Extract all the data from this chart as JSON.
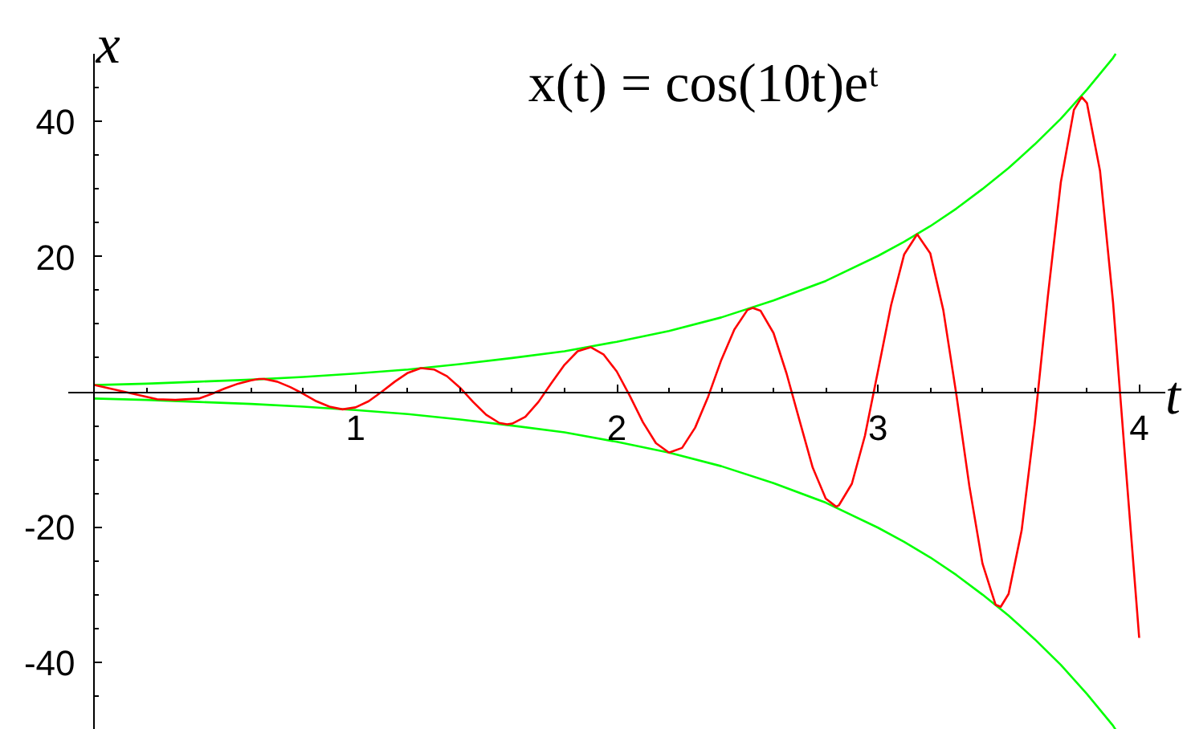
{
  "chart_data": {
    "type": "line",
    "title": "x(t) = cos(10t)eᵗ",
    "xlabel": "t",
    "ylabel": "x",
    "xlim": [
      -0.1,
      4.1
    ],
    "ylim": [
      -50,
      50
    ],
    "xticks": [
      {
        "value": 0.2,
        "label": null
      },
      {
        "value": 0.4,
        "label": null
      },
      {
        "value": 0.6,
        "label": null
      },
      {
        "value": 0.8,
        "label": null
      },
      1,
      {
        "value": 1.2,
        "label": null
      },
      {
        "value": 1.4,
        "label": null
      },
      {
        "value": 1.6,
        "label": null
      },
      {
        "value": 1.8,
        "label": null
      },
      2,
      {
        "value": 2.2,
        "label": null
      },
      {
        "value": 2.4,
        "label": null
      },
      {
        "value": 2.6,
        "label": null
      },
      {
        "value": 2.8,
        "label": null
      },
      3,
      {
        "value": 3.2,
        "label": null
      },
      {
        "value": 3.4,
        "label": null
      },
      {
        "value": 3.6,
        "label": null
      },
      {
        "value": 3.8,
        "label": null
      },
      4
    ],
    "yticks": [
      {
        "value": -45,
        "label": null
      },
      -40,
      {
        "value": -35,
        "label": null
      },
      {
        "value": -30,
        "label": null
      },
      {
        "value": -25,
        "label": null
      },
      -20,
      {
        "value": -15,
        "label": null
      },
      {
        "value": -10,
        "label": null
      },
      {
        "value": -5,
        "label": null
      },
      {
        "value": 5,
        "label": null
      },
      {
        "value": 10,
        "label": null
      },
      {
        "value": 15,
        "label": null
      },
      20,
      {
        "value": 25,
        "label": null
      },
      {
        "value": 30,
        "label": null
      },
      {
        "value": 35,
        "label": null
      },
      40,
      {
        "value": 45,
        "label": null
      }
    ],
    "series": [
      {
        "color": "#00ff00",
        "x": [
          0,
          0.2,
          0.4,
          0.6,
          0.8,
          1.0,
          1.2,
          1.4,
          1.6,
          1.8,
          2.0,
          2.2,
          2.4,
          2.6,
          2.8,
          3.0,
          3.1,
          3.2,
          3.3,
          3.4,
          3.5,
          3.6,
          3.7,
          3.8,
          3.9,
          3.91
        ],
        "values": [
          1.0,
          1.2,
          1.5,
          1.8,
          2.2,
          2.7,
          3.3,
          4.1,
          5.0,
          6.0,
          7.4,
          9.0,
          11.0,
          13.5,
          16.4,
          20.1,
          22.2,
          24.5,
          27.1,
          30.0,
          33.1,
          36.6,
          40.4,
          44.7,
          49.4,
          50.0
        ]
      },
      {
        "color": "#00ff00",
        "x": [
          0,
          0.2,
          0.4,
          0.6,
          0.8,
          1.0,
          1.2,
          1.4,
          1.6,
          1.8,
          2.0,
          2.2,
          2.4,
          2.6,
          2.8,
          3.0,
          3.1,
          3.2,
          3.3,
          3.4,
          3.5,
          3.6,
          3.7,
          3.8,
          3.9,
          3.91
        ],
        "values": [
          -1.0,
          -1.2,
          -1.5,
          -1.8,
          -2.2,
          -2.7,
          -3.3,
          -4.1,
          -5.0,
          -6.0,
          -7.4,
          -9.0,
          -11.0,
          -13.5,
          -16.4,
          -20.1,
          -22.2,
          -24.5,
          -27.1,
          -30.0,
          -33.1,
          -36.6,
          -40.4,
          -44.7,
          -49.4,
          -50.0
        ]
      },
      {
        "color": "#ff0000",
        "x": [
          0,
          0.24,
          0.31,
          0.4,
          0.45,
          0.5,
          0.55,
          0.6,
          0.63,
          0.65,
          0.7,
          0.75,
          0.8,
          0.85,
          0.9,
          0.95,
          1.0,
          1.05,
          1.1,
          1.15,
          1.2,
          1.25,
          1.3,
          1.35,
          1.4,
          1.45,
          1.5,
          1.55,
          1.58,
          1.6,
          1.65,
          1.7,
          1.75,
          1.8,
          1.85,
          1.9,
          1.95,
          2.0,
          2.05,
          2.1,
          2.15,
          2.2,
          2.25,
          2.3,
          2.35,
          2.4,
          2.45,
          2.5,
          2.52,
          2.55,
          2.6,
          2.65,
          2.7,
          2.75,
          2.8,
          2.84,
          2.85,
          2.9,
          2.95,
          3.0,
          3.05,
          3.1,
          3.15,
          3.2,
          3.25,
          3.3,
          3.35,
          3.4,
          3.45,
          3.47,
          3.5,
          3.55,
          3.6,
          3.65,
          3.7,
          3.75,
          3.78,
          3.8,
          3.85,
          3.9,
          3.95,
          4.0
        ],
        "values": [
          1.0,
          -1.1,
          -1.2,
          -1.0,
          -0.3,
          0.5,
          1.2,
          1.7,
          1.9,
          1.9,
          1.5,
          0.7,
          -0.3,
          -1.4,
          -2.2,
          -2.6,
          -2.3,
          -1.4,
          0.0,
          1.5,
          2.8,
          3.5,
          3.3,
          2.3,
          0.6,
          -1.5,
          -3.4,
          -4.6,
          -4.8,
          -4.7,
          -3.7,
          -1.5,
          1.3,
          4.0,
          6.0,
          6.6,
          5.5,
          3.0,
          -0.6,
          -4.5,
          -7.6,
          -9.0,
          -8.3,
          -5.3,
          -0.7,
          4.7,
          9.2,
          12.1,
          12.4,
          12.0,
          8.7,
          2.7,
          -4.3,
          -11.2,
          -15.8,
          -17.0,
          -16.8,
          -13.6,
          -6.5,
          3.1,
          12.8,
          20.3,
          23.3,
          20.5,
          12.1,
          -0.4,
          -14.0,
          -25.4,
          -31.5,
          -31.8,
          -29.9,
          -20.5,
          -4.7,
          14.0,
          31.0,
          41.7,
          43.6,
          42.7,
          32.7,
          13.2,
          -11.8,
          -36.4
        ]
      }
    ]
  }
}
